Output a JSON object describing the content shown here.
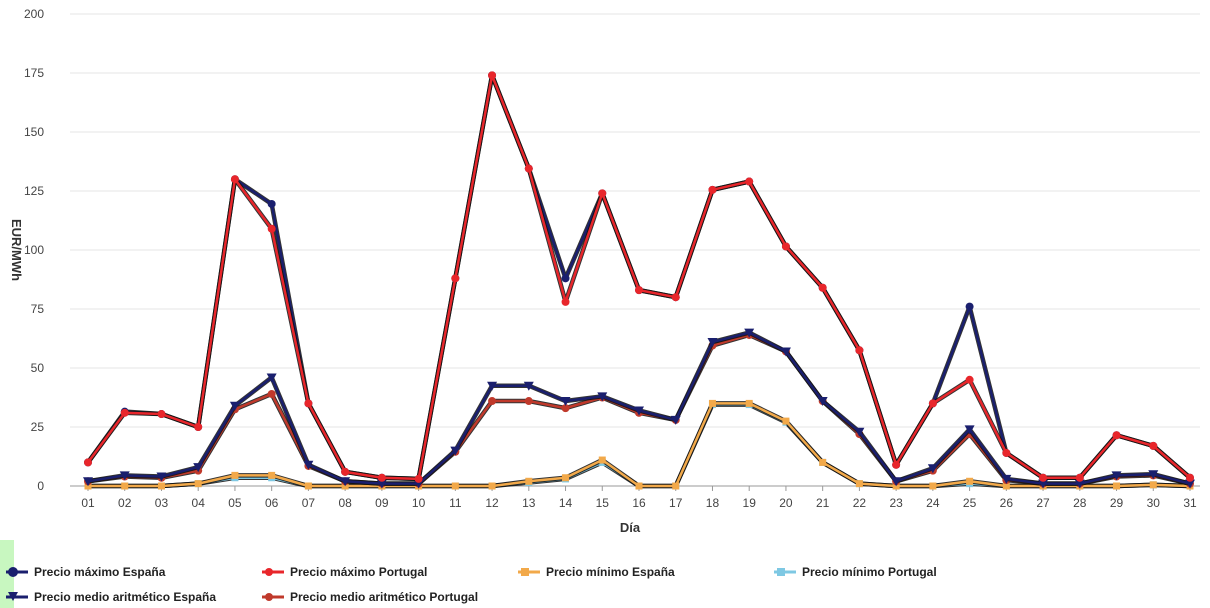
{
  "chart_data": {
    "type": "line",
    "xlabel": "Día",
    "ylabel": "EUR/MWh",
    "ylim": [
      0,
      200
    ],
    "yticks": [
      "0",
      "25",
      "50",
      "75",
      "100",
      "125",
      "150",
      "175",
      "200"
    ],
    "categories": [
      "01",
      "02",
      "03",
      "04",
      "05",
      "06",
      "07",
      "08",
      "09",
      "10",
      "11",
      "12",
      "13",
      "14",
      "15",
      "16",
      "17",
      "18",
      "19",
      "20",
      "21",
      "22",
      "23",
      "24",
      "25",
      "26",
      "27",
      "28",
      "29",
      "30",
      "31"
    ],
    "grid": true,
    "legend_position": "bottom",
    "series": [
      {
        "name": "Precio máximo España",
        "color": "#1a1f6e",
        "marker": "circle",
        "values": [
          10,
          31.5,
          30.5,
          25,
          130,
          119.5,
          35,
          6,
          3.5,
          3,
          88,
          174,
          134.5,
          88,
          124,
          83,
          80,
          125.5,
          129,
          101.5,
          84,
          57.5,
          9,
          35,
          76,
          14,
          3.5,
          3.5,
          21.5,
          17,
          3.5
        ]
      },
      {
        "name": "Precio máximo Portugal",
        "color": "#e8262b",
        "marker": "circle",
        "values": [
          10,
          31,
          30.5,
          25,
          130,
          109,
          35,
          6,
          3.5,
          3,
          88,
          174,
          134.5,
          78,
          124,
          83,
          80,
          125.5,
          129,
          101.5,
          84,
          57.5,
          9,
          35,
          45,
          14,
          3.5,
          3.5,
          21.5,
          17,
          3.5
        ]
      },
      {
        "name": "Precio mínimo España",
        "color": "#f2a94a",
        "marker": "square",
        "values": [
          0,
          0,
          0,
          1,
          4.5,
          4.5,
          0,
          0,
          0,
          0,
          0,
          0,
          2,
          3.5,
          11,
          0,
          0,
          35,
          35,
          27.5,
          10,
          1,
          0,
          0,
          2,
          0,
          0,
          0,
          0,
          0.5,
          0
        ]
      },
      {
        "name": "Precio mínimo Portugal",
        "color": "#7ec8e3",
        "marker": "square",
        "values": [
          0,
          0,
          0,
          1,
          3.5,
          3.5,
          0,
          0,
          0,
          0,
          0,
          0,
          1.5,
          3,
          10,
          0,
          0,
          34.5,
          34.5,
          27,
          10,
          1,
          0,
          0,
          1,
          0,
          0,
          0,
          0,
          0.5,
          0
        ]
      },
      {
        "name": "Precio medio aritmético España",
        "color": "#1a1f6e",
        "marker": "triangle-down",
        "values": [
          2,
          4.5,
          4,
          8,
          34,
          46,
          9,
          2,
          1,
          1,
          15,
          42.5,
          42.5,
          36,
          38,
          32,
          28,
          61,
          65,
          57,
          36,
          23,
          2,
          7.5,
          24,
          3,
          1,
          1,
          4.5,
          5,
          1
        ]
      },
      {
        "name": "Precio medio aritmético Portugal",
        "color": "#c0392b",
        "marker": "circle",
        "values": [
          2,
          4,
          3.5,
          6.5,
          32.5,
          39,
          8.5,
          2,
          1,
          1,
          14.5,
          36,
          36,
          33,
          37.5,
          31,
          28,
          59.5,
          64,
          57,
          36,
          22,
          2,
          6.5,
          22,
          2.5,
          1,
          1,
          4,
          4.5,
          1
        ]
      }
    ]
  }
}
